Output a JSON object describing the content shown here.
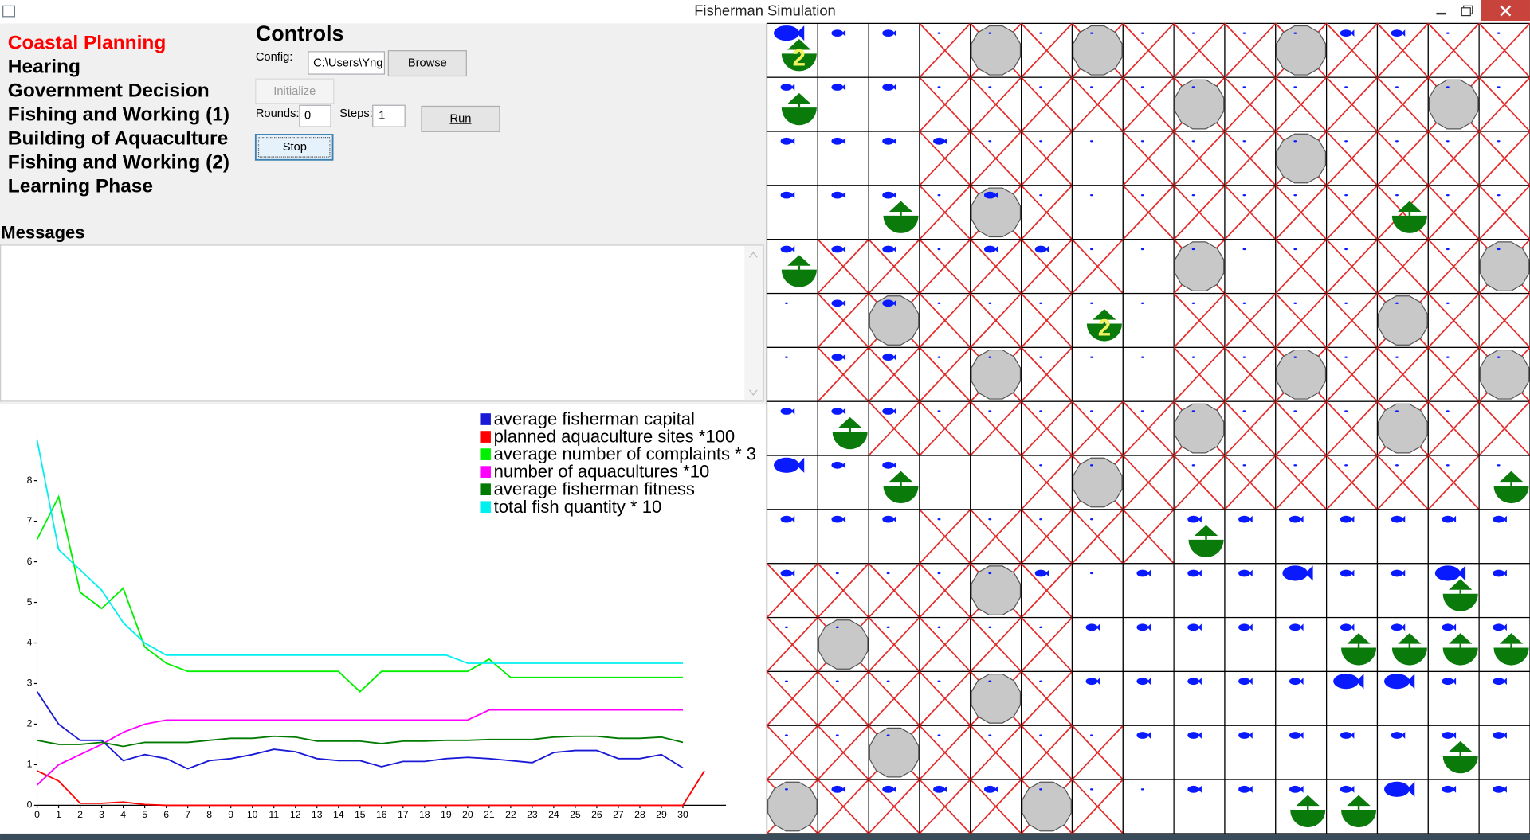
{
  "window": {
    "title": "Fisherman Simulation"
  },
  "phases": [
    {
      "label": "Coastal Planning",
      "active": true
    },
    {
      "label": "Hearing",
      "active": false
    },
    {
      "label": "Government Decision",
      "active": false
    },
    {
      "label": "Fishing and Working (1)",
      "active": false
    },
    {
      "label": "Building of Aquaculture",
      "active": false
    },
    {
      "label": "Fishing and Working (2)",
      "active": false
    },
    {
      "label": "Learning Phase",
      "active": false
    }
  ],
  "controls": {
    "title": "Controls",
    "config_label": "Config:",
    "config_value": "C:\\Users\\Yng",
    "browse": "Browse",
    "initialize": "Initialize",
    "rounds_label": "Rounds:",
    "rounds_value": "0",
    "steps_label": "Steps:",
    "steps_value": "1",
    "run": "Run",
    "stop": "Stop"
  },
  "messages": {
    "title": "Messages"
  },
  "chart_data": {
    "type": "line",
    "x": [
      0,
      1,
      2,
      3,
      4,
      5,
      6,
      7,
      8,
      9,
      10,
      11,
      12,
      13,
      14,
      15,
      16,
      17,
      18,
      19,
      20,
      21,
      22,
      23,
      24,
      25,
      26,
      27,
      28,
      29,
      30,
      31
    ],
    "xlim": [
      0,
      32
    ],
    "ylim": [
      0,
      9.2
    ],
    "xticks": [
      0,
      1,
      2,
      3,
      4,
      5,
      6,
      7,
      8,
      9,
      10,
      11,
      12,
      13,
      14,
      15,
      16,
      17,
      18,
      19,
      20,
      21,
      22,
      23,
      24,
      25,
      26,
      27,
      28,
      29,
      30
    ],
    "yticks": [
      0,
      1,
      2,
      3,
      4,
      5,
      6,
      7,
      8
    ],
    "series": [
      {
        "name": "average fisherman capital",
        "color": "#1a1ad6",
        "values": [
          2.8,
          2.0,
          1.6,
          1.6,
          1.1,
          1.25,
          1.15,
          0.9,
          1.1,
          1.15,
          1.25,
          1.38,
          1.32,
          1.15,
          1.1,
          1.1,
          0.95,
          1.08,
          1.08,
          1.15,
          1.18,
          1.15,
          1.1,
          1.05,
          1.3,
          1.35,
          1.35,
          1.15,
          1.15,
          1.25,
          0.92,
          null
        ]
      },
      {
        "name": "planned aquaculture sites *100",
        "color": "#ff0000",
        "values": [
          0.85,
          0.6,
          0.05,
          0.05,
          0.08,
          0.02,
          0,
          0,
          0,
          0,
          0,
          0,
          0,
          0,
          0,
          0,
          0,
          0,
          0,
          0,
          0,
          0,
          0,
          0,
          0,
          0,
          0,
          0,
          0,
          0,
          0,
          0.85
        ]
      },
      {
        "name": "average number of complaints * 3",
        "color": "#00f000",
        "values": [
          6.55,
          7.6,
          5.25,
          4.85,
          5.35,
          3.9,
          3.5,
          3.3,
          3.3,
          3.3,
          3.3,
          3.3,
          3.3,
          3.3,
          3.3,
          2.8,
          3.3,
          3.3,
          3.3,
          3.3,
          3.3,
          3.6,
          3.15,
          3.15,
          3.15,
          3.15,
          3.15,
          3.15,
          3.15,
          3.15,
          3.15,
          null
        ]
      },
      {
        "name": "number of aquacultures *10",
        "color": "#ff00ff",
        "values": [
          0.5,
          1.0,
          1.25,
          1.5,
          1.8,
          2.0,
          2.1,
          2.1,
          2.1,
          2.1,
          2.1,
          2.1,
          2.1,
          2.1,
          2.1,
          2.1,
          2.1,
          2.1,
          2.1,
          2.1,
          2.1,
          2.35,
          2.35,
          2.35,
          2.35,
          2.35,
          2.35,
          2.35,
          2.35,
          2.35,
          2.35,
          null
        ]
      },
      {
        "name": "average fisherman fitness",
        "color": "#007a00",
        "values": [
          1.6,
          1.5,
          1.5,
          1.55,
          1.45,
          1.55,
          1.55,
          1.55,
          1.6,
          1.65,
          1.65,
          1.7,
          1.68,
          1.58,
          1.58,
          1.58,
          1.52,
          1.58,
          1.58,
          1.6,
          1.6,
          1.62,
          1.62,
          1.62,
          1.68,
          1.7,
          1.7,
          1.65,
          1.65,
          1.68,
          1.55,
          null
        ]
      },
      {
        "name": "total fish quantity * 10",
        "color": "#00f0f0",
        "values": [
          9.0,
          6.3,
          5.8,
          5.3,
          4.5,
          4.0,
          3.7,
          3.7,
          3.7,
          3.7,
          3.7,
          3.7,
          3.7,
          3.7,
          3.7,
          3.7,
          3.7,
          3.7,
          3.7,
          3.7,
          3.5,
          3.5,
          3.5,
          3.5,
          3.5,
          3.5,
          3.5,
          3.5,
          3.5,
          3.5,
          3.5,
          null
        ]
      }
    ]
  },
  "grid": {
    "boat_labels": [
      "2",
      "2"
    ]
  }
}
